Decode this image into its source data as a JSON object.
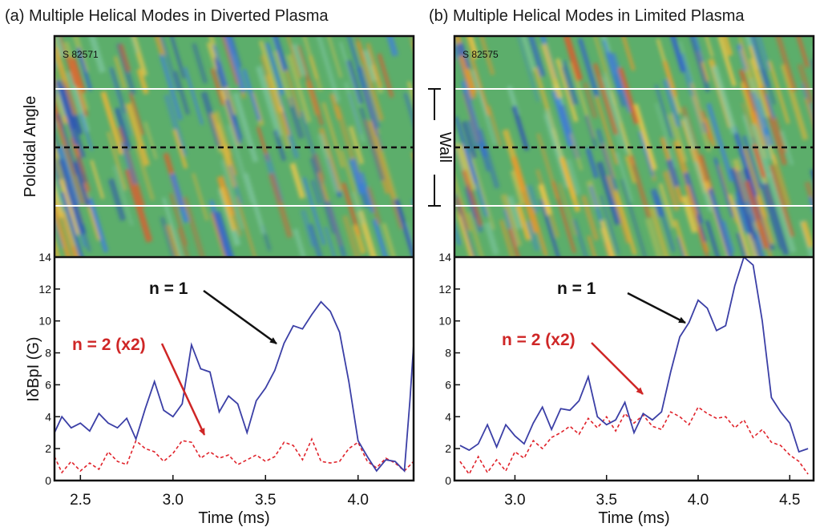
{
  "colors": {
    "n1": "#3b3fa6",
    "n2": "#e0232b",
    "n1_arrow": "#111111",
    "n2_arrow": "#cf2626",
    "spectro_bg": "#5cae6b"
  },
  "panels": [
    {
      "title": "(a) Multiple Helical Modes in Diverted Plasma",
      "shot": "S 82571",
      "spectrogram_ylabel": "Poloidal Angle",
      "ylabel": "IδBpI (G)",
      "xlabel": "Time (ms)",
      "x_ticks": [
        "2.5",
        "3.0",
        "3.5",
        "4.0"
      ],
      "y_ticks": [
        "0",
        "2",
        "4",
        "6",
        "8",
        "10",
        "12",
        "14"
      ],
      "n1_label": "n = 1",
      "n2_label": "n = 2 (x2)"
    },
    {
      "title": "(b) Multiple Helical Modes in Limited Plasma",
      "shot": "S 82575",
      "ylabel": "",
      "xlabel": "Time (ms)",
      "x_ticks": [
        "3.0",
        "3.5",
        "4.0",
        "4.5"
      ],
      "y_ticks": [
        "0",
        "2",
        "4",
        "6",
        "8",
        "10",
        "12",
        "14"
      ],
      "n1_label": "n = 1",
      "n2_label": "n = 2 (x2)"
    }
  ],
  "wall_label": "Wall",
  "chart_data": [
    {
      "type": "line",
      "title": "(a) Multiple Helical Modes in Diverted Plasma",
      "xlabel": "Time (ms)",
      "ylabel": "IδBpI (G)",
      "xlim": [
        2.36,
        4.3
      ],
      "ylim": [
        0,
        14
      ],
      "series": [
        {
          "name": "n = 1",
          "x": [
            2.36,
            2.4,
            2.45,
            2.5,
            2.55,
            2.6,
            2.65,
            2.7,
            2.75,
            2.8,
            2.85,
            2.9,
            2.95,
            3.0,
            3.05,
            3.1,
            3.15,
            3.2,
            3.25,
            3.3,
            3.35,
            3.4,
            3.45,
            3.5,
            3.55,
            3.6,
            3.65,
            3.7,
            3.75,
            3.8,
            3.85,
            3.9,
            3.95,
            4.0,
            4.05,
            4.1,
            4.15,
            4.2,
            4.25,
            4.28,
            4.3
          ],
          "y": [
            3.0,
            4.0,
            3.3,
            3.6,
            3.1,
            4.2,
            3.6,
            3.3,
            3.9,
            2.6,
            4.5,
            6.2,
            4.4,
            4.0,
            4.8,
            8.5,
            7.0,
            6.8,
            4.3,
            5.3,
            4.8,
            3.0,
            5.0,
            5.8,
            6.9,
            8.6,
            9.7,
            9.5,
            10.4,
            11.2,
            10.6,
            9.3,
            6.2,
            2.5,
            1.5,
            0.6,
            1.3,
            1.2,
            0.6,
            5.0,
            8.5
          ]
        },
        {
          "name": "n = 2 (x2)",
          "x": [
            2.36,
            2.4,
            2.45,
            2.5,
            2.55,
            2.6,
            2.65,
            2.7,
            2.75,
            2.8,
            2.85,
            2.9,
            2.95,
            3.0,
            3.05,
            3.1,
            3.15,
            3.2,
            3.25,
            3.3,
            3.35,
            3.4,
            3.45,
            3.5,
            3.55,
            3.6,
            3.65,
            3.7,
            3.75,
            3.8,
            3.85,
            3.9,
            3.95,
            4.0,
            4.05,
            4.1,
            4.15,
            4.2,
            4.25,
            4.3
          ],
          "y": [
            1.5,
            0.5,
            1.2,
            0.6,
            1.1,
            0.7,
            1.8,
            1.2,
            1.0,
            2.5,
            2.0,
            1.8,
            1.2,
            1.7,
            2.5,
            2.4,
            1.4,
            1.8,
            1.4,
            1.6,
            1.0,
            1.3,
            1.6,
            1.2,
            1.5,
            2.4,
            2.2,
            1.3,
            2.6,
            1.2,
            1.1,
            1.2,
            2.0,
            2.4,
            1.2,
            0.8,
            1.4,
            1.1,
            0.6,
            1.2
          ]
        }
      ]
    },
    {
      "type": "line",
      "title": "(b) Multiple Helical Modes in Limited Plasma",
      "xlabel": "Time (ms)",
      "ylabel": "",
      "xlim": [
        2.67,
        4.63
      ],
      "ylim": [
        0,
        14
      ],
      "series": [
        {
          "name": "n = 1",
          "x": [
            2.7,
            2.75,
            2.8,
            2.85,
            2.9,
            2.95,
            3.0,
            3.05,
            3.1,
            3.15,
            3.2,
            3.25,
            3.3,
            3.35,
            3.4,
            3.45,
            3.5,
            3.55,
            3.6,
            3.65,
            3.7,
            3.75,
            3.8,
            3.85,
            3.9,
            3.95,
            4.0,
            4.05,
            4.1,
            4.15,
            4.2,
            4.25,
            4.3,
            4.35,
            4.4,
            4.45,
            4.5,
            4.55,
            4.6
          ],
          "y": [
            2.2,
            1.9,
            2.3,
            3.5,
            2.1,
            3.5,
            2.8,
            2.3,
            3.6,
            4.6,
            3.2,
            4.5,
            4.4,
            5.0,
            6.5,
            4.0,
            3.5,
            3.8,
            4.9,
            3.0,
            4.2,
            3.8,
            4.3,
            6.8,
            9.0,
            9.9,
            11.3,
            10.8,
            9.4,
            9.7,
            12.2,
            14.0,
            13.5,
            10.0,
            5.2,
            4.3,
            3.6,
            1.8,
            2.0
          ]
        },
        {
          "name": "n = 2 (x2)",
          "x": [
            2.7,
            2.75,
            2.8,
            2.85,
            2.9,
            2.95,
            3.0,
            3.05,
            3.1,
            3.15,
            3.2,
            3.25,
            3.3,
            3.35,
            3.4,
            3.45,
            3.5,
            3.55,
            3.6,
            3.65,
            3.7,
            3.75,
            3.8,
            3.85,
            3.9,
            3.95,
            4.0,
            4.05,
            4.1,
            4.15,
            4.2,
            4.25,
            4.3,
            4.35,
            4.4,
            4.45,
            4.5,
            4.55,
            4.6
          ],
          "y": [
            1.2,
            0.4,
            1.5,
            0.5,
            1.3,
            0.6,
            1.8,
            1.4,
            2.5,
            2.0,
            2.7,
            3.0,
            3.4,
            2.9,
            3.9,
            3.3,
            4.0,
            3.1,
            4.2,
            3.6,
            4.1,
            3.4,
            3.2,
            4.3,
            4.0,
            3.5,
            4.6,
            4.2,
            3.9,
            4.0,
            3.3,
            3.8,
            2.7,
            3.2,
            2.4,
            2.2,
            1.6,
            1.2,
            0.4
          ]
        }
      ]
    }
  ]
}
